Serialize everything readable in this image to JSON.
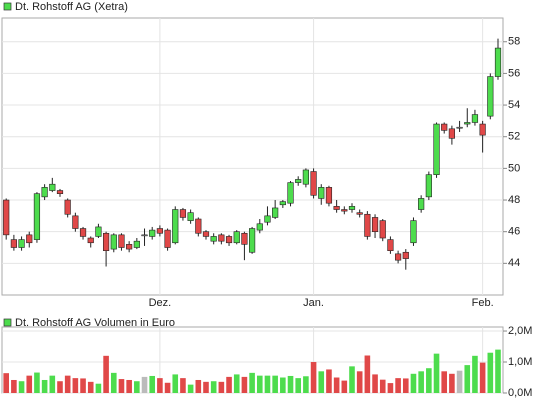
{
  "chart_data": [
    {
      "type": "candlestick",
      "series": [
        {
          "name": "Dt. Rohstoff AG (Xetra)",
          "open": [
            48.0,
            45.5,
            45.0,
            45.8,
            45.5,
            48.2,
            48.6,
            48.6,
            48.0,
            47.0,
            46.2,
            45.6,
            45.7,
            45.9,
            44.9,
            45.8,
            45.2,
            45.0,
            45.8,
            45.7,
            46.2,
            46.1,
            45.3,
            47.4,
            46.7,
            46.8,
            46.0,
            45.4,
            45.8,
            45.7,
            45.3,
            45.9,
            44.7,
            46.1,
            46.6,
            46.9,
            47.7,
            47.8,
            49.1,
            49.0,
            49.8,
            48.1,
            48.8,
            47.6,
            47.4,
            47.4,
            47.2,
            47.1,
            46.9,
            46.7,
            45.5,
            44.6,
            44.7,
            45.3,
            47.4,
            48.2,
            49.6,
            52.8,
            52.5,
            52.6,
            52.8,
            52.9,
            52.8,
            53.3,
            55.8
          ],
          "high": [
            48.1,
            45.8,
            45.7,
            46.0,
            48.5,
            49.0,
            49.4,
            48.7,
            48.1,
            47.2,
            46.3,
            45.7,
            46.5,
            46.0,
            45.9,
            45.9,
            45.4,
            45.6,
            46.2,
            46.3,
            46.4,
            46.2,
            47.6,
            47.5,
            47.4,
            46.9,
            46.1,
            45.9,
            45.9,
            45.8,
            46.1,
            46.0,
            46.3,
            46.8,
            47.6,
            48.0,
            48.0,
            49.2,
            49.5,
            50.0,
            50.0,
            49.0,
            48.9,
            48.0,
            47.6,
            47.8,
            47.4,
            47.3,
            47.1,
            46.8,
            45.7,
            44.8,
            44.9,
            46.9,
            48.3,
            49.8,
            52.9,
            52.9,
            52.7,
            53.0,
            53.8,
            53.7,
            53.0,
            56.0,
            58.2
          ],
          "low": [
            45.5,
            44.8,
            44.8,
            45.0,
            45.3,
            48.0,
            48.5,
            48.2,
            46.9,
            46.0,
            45.5,
            45.0,
            45.6,
            43.8,
            44.7,
            44.8,
            44.7,
            44.9,
            45.1,
            45.5,
            45.7,
            44.8,
            45.2,
            46.7,
            46.5,
            45.7,
            45.5,
            45.2,
            45.2,
            45.1,
            45.2,
            44.2,
            44.6,
            45.9,
            46.4,
            46.8,
            47.5,
            47.6,
            48.9,
            48.8,
            48.1,
            47.7,
            47.6,
            47.2,
            47.1,
            47.2,
            46.9,
            45.5,
            45.6,
            45.4,
            44.6,
            44.0,
            43.6,
            45.1,
            47.2,
            48.0,
            49.4,
            52.2,
            51.5,
            52.3,
            52.6,
            52.7,
            51.0,
            53.1,
            55.6
          ],
          "close": [
            45.8,
            45.0,
            45.5,
            45.3,
            48.4,
            48.8,
            49.0,
            48.4,
            47.1,
            46.2,
            45.7,
            45.3,
            46.3,
            44.8,
            45.8,
            45.0,
            44.9,
            45.4,
            45.8,
            46.1,
            45.9,
            45.0,
            47.4,
            46.9,
            47.2,
            45.9,
            45.7,
            45.7,
            45.4,
            45.3,
            46.0,
            45.2,
            46.2,
            46.5,
            47.0,
            47.5,
            47.9,
            49.1,
            49.3,
            49.9,
            48.3,
            48.8,
            47.8,
            47.4,
            47.3,
            47.6,
            47.1,
            45.7,
            46.0,
            45.6,
            44.8,
            44.2,
            44.3,
            46.7,
            48.1,
            49.6,
            52.8,
            52.4,
            51.9,
            52.6,
            52.9,
            53.4,
            52.1,
            55.8,
            57.6
          ]
        }
      ],
      "categories": [
        null,
        null,
        null,
        null,
        null,
        null,
        null,
        null,
        null,
        null,
        null,
        null,
        null,
        null,
        null,
        null,
        null,
        null,
        null,
        null,
        "Dez.",
        null,
        null,
        null,
        null,
        null,
        null,
        null,
        null,
        null,
        null,
        null,
        null,
        null,
        null,
        null,
        null,
        null,
        null,
        null,
        "Jan.",
        null,
        null,
        null,
        null,
        null,
        null,
        null,
        null,
        null,
        null,
        null,
        null,
        null,
        null,
        null,
        null,
        null,
        null,
        null,
        null,
        null,
        "Feb.",
        null,
        null
      ],
      "ylim": [
        42,
        59.5
      ],
      "yticks": [
        44,
        46,
        48,
        50,
        52,
        54,
        56,
        58
      ],
      "grid": true,
      "up_color": "#4ddc4d",
      "down_color": "#e04848",
      "flat_color": "#bbbbbb"
    },
    {
      "type": "bar",
      "series": [
        {
          "name": "Dt. Rohstoff AG Volumen in Euro",
          "values": [
            640000,
            420000,
            380000,
            560000,
            660000,
            420000,
            560000,
            380000,
            560000,
            480000,
            470000,
            360000,
            300000,
            1200000,
            650000,
            450000,
            420000,
            380000,
            520000,
            550000,
            480000,
            330000,
            600000,
            480000,
            270000,
            420000,
            360000,
            380000,
            360000,
            520000,
            600000,
            520000,
            650000,
            560000,
            560000,
            560000,
            500000,
            550000,
            480000,
            540000,
            1000000,
            700000,
            760000,
            500000,
            400000,
            860000,
            700000,
            1210000,
            600000,
            430000,
            320000,
            480000,
            470000,
            620000,
            700000,
            800000,
            1270000,
            700000,
            620000,
            720000,
            900000,
            1200000,
            980000,
            1300000,
            1400000
          ]
        }
      ],
      "ylim": [
        0,
        2130000
      ],
      "yticks": [
        {
          "value": 0,
          "label": "0,0M"
        },
        {
          "value": 1000000,
          "label": "1,0M"
        },
        {
          "value": 2000000,
          "label": "2,0M"
        }
      ],
      "grid": true
    }
  ]
}
